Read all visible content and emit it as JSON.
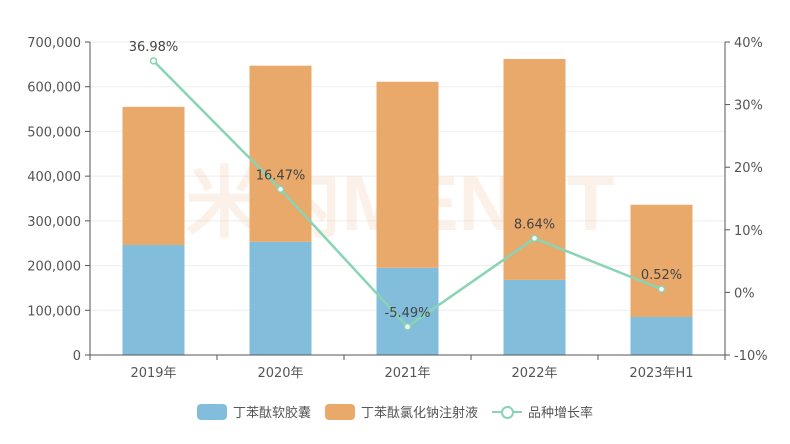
{
  "chart_data": {
    "type": "bar+line",
    "title": "",
    "categories": [
      "2019年",
      "2020年",
      "2021年",
      "2022年",
      "2023年H1"
    ],
    "series": [
      {
        "name": "丁苯酞软胶囊",
        "type": "bar",
        "stack": "total",
        "color": "#82bedb",
        "values": [
          246000,
          253000,
          195000,
          168000,
          85000
        ]
      },
      {
        "name": "丁苯酞氯化钠注射液",
        "type": "bar",
        "stack": "total",
        "color": "#e8a96b",
        "values": [
          309000,
          394000,
          416000,
          494000,
          251000
        ]
      },
      {
        "name": "品种增长率",
        "type": "line",
        "axis": "right",
        "color": "#88d4b4",
        "values": [
          36.98,
          16.47,
          -5.49,
          8.64,
          0.52
        ],
        "labels": [
          "36.98%",
          "16.47%",
          "-5.49%",
          "8.64%",
          "0.52%"
        ]
      }
    ],
    "y_left": {
      "min": 0,
      "max": 700000,
      "ticks": [
        "0",
        "100,000",
        "200,000",
        "300,000",
        "400,000",
        "500,000",
        "600,000",
        "700,000"
      ]
    },
    "y_right": {
      "min": -10,
      "max": 40,
      "ticks": [
        "-10%",
        "0%",
        "10%",
        "20%",
        "30%",
        "40%"
      ]
    },
    "grid": true,
    "legend_position": "bottom",
    "watermark": "米内MENET"
  },
  "legend": {
    "items": [
      {
        "label": "丁苯酞软胶囊",
        "color": "#82bedb"
      },
      {
        "label": "丁苯酞氯化钠注射液",
        "color": "#e8a96b"
      },
      {
        "label": "品种增长率",
        "color": "#88d4b4"
      }
    ]
  }
}
